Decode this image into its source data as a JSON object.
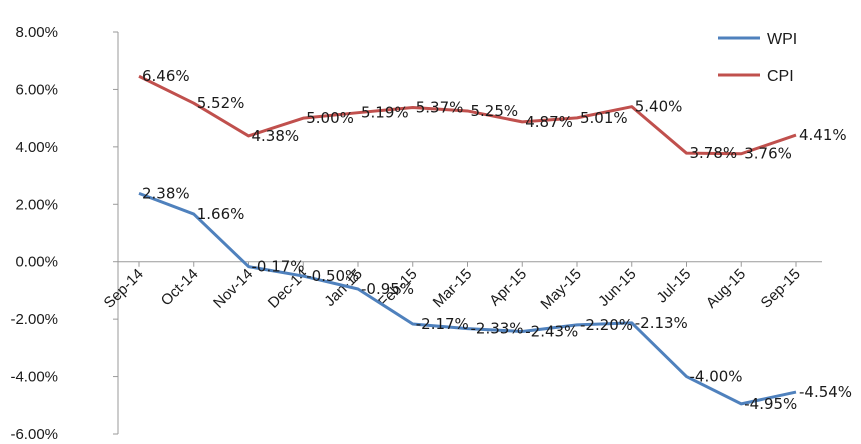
{
  "chart_data": {
    "type": "line",
    "categories": [
      "Sep-14",
      "Oct-14",
      "Nov-14",
      "Dec-14",
      "Jan-15",
      "Feb-15",
      "Mar-15",
      "Apr-15",
      "May-15",
      "Jun-15",
      "Jul-15",
      "Aug-15",
      "Sep-15"
    ],
    "series": [
      {
        "name": "WPI",
        "color": "#4f81bd",
        "values": [
          2.38,
          1.66,
          -0.17,
          -0.5,
          -0.95,
          -2.17,
          -2.33,
          -2.43,
          -2.2,
          -2.13,
          -4.0,
          -4.95,
          -4.54
        ],
        "labels": [
          "2.38%",
          "1.66%",
          "-0.17%",
          "-0.50%",
          "-0.95%",
          "-2.17%",
          "-2.33%",
          "-2.43%",
          "-2.20%",
          "-2.13%",
          "-4.00%",
          "-4.95%",
          "-4.54%"
        ]
      },
      {
        "name": "CPI",
        "color": "#c0504d",
        "values": [
          6.46,
          5.52,
          4.38,
          5.0,
          5.19,
          5.37,
          5.25,
          4.87,
          5.01,
          5.4,
          3.78,
          3.76,
          4.41
        ],
        "labels": [
          "6.46%",
          "5.52%",
          "4.38%",
          "5.00%",
          "5.19%",
          "5.37%",
          "5.25%",
          "4.87%",
          "5.01%",
          "5.40%",
          "3.78%",
          "3.76%",
          "4.41%"
        ]
      }
    ],
    "yticks": [
      "8.00%",
      "6.00%",
      "4.00%",
      "2.00%",
      "0.00%",
      "-2.00%",
      "-4.00%",
      "-6.00%"
    ],
    "ylim": [
      -6,
      8
    ],
    "legend_position": "top-right",
    "grid": false
  }
}
